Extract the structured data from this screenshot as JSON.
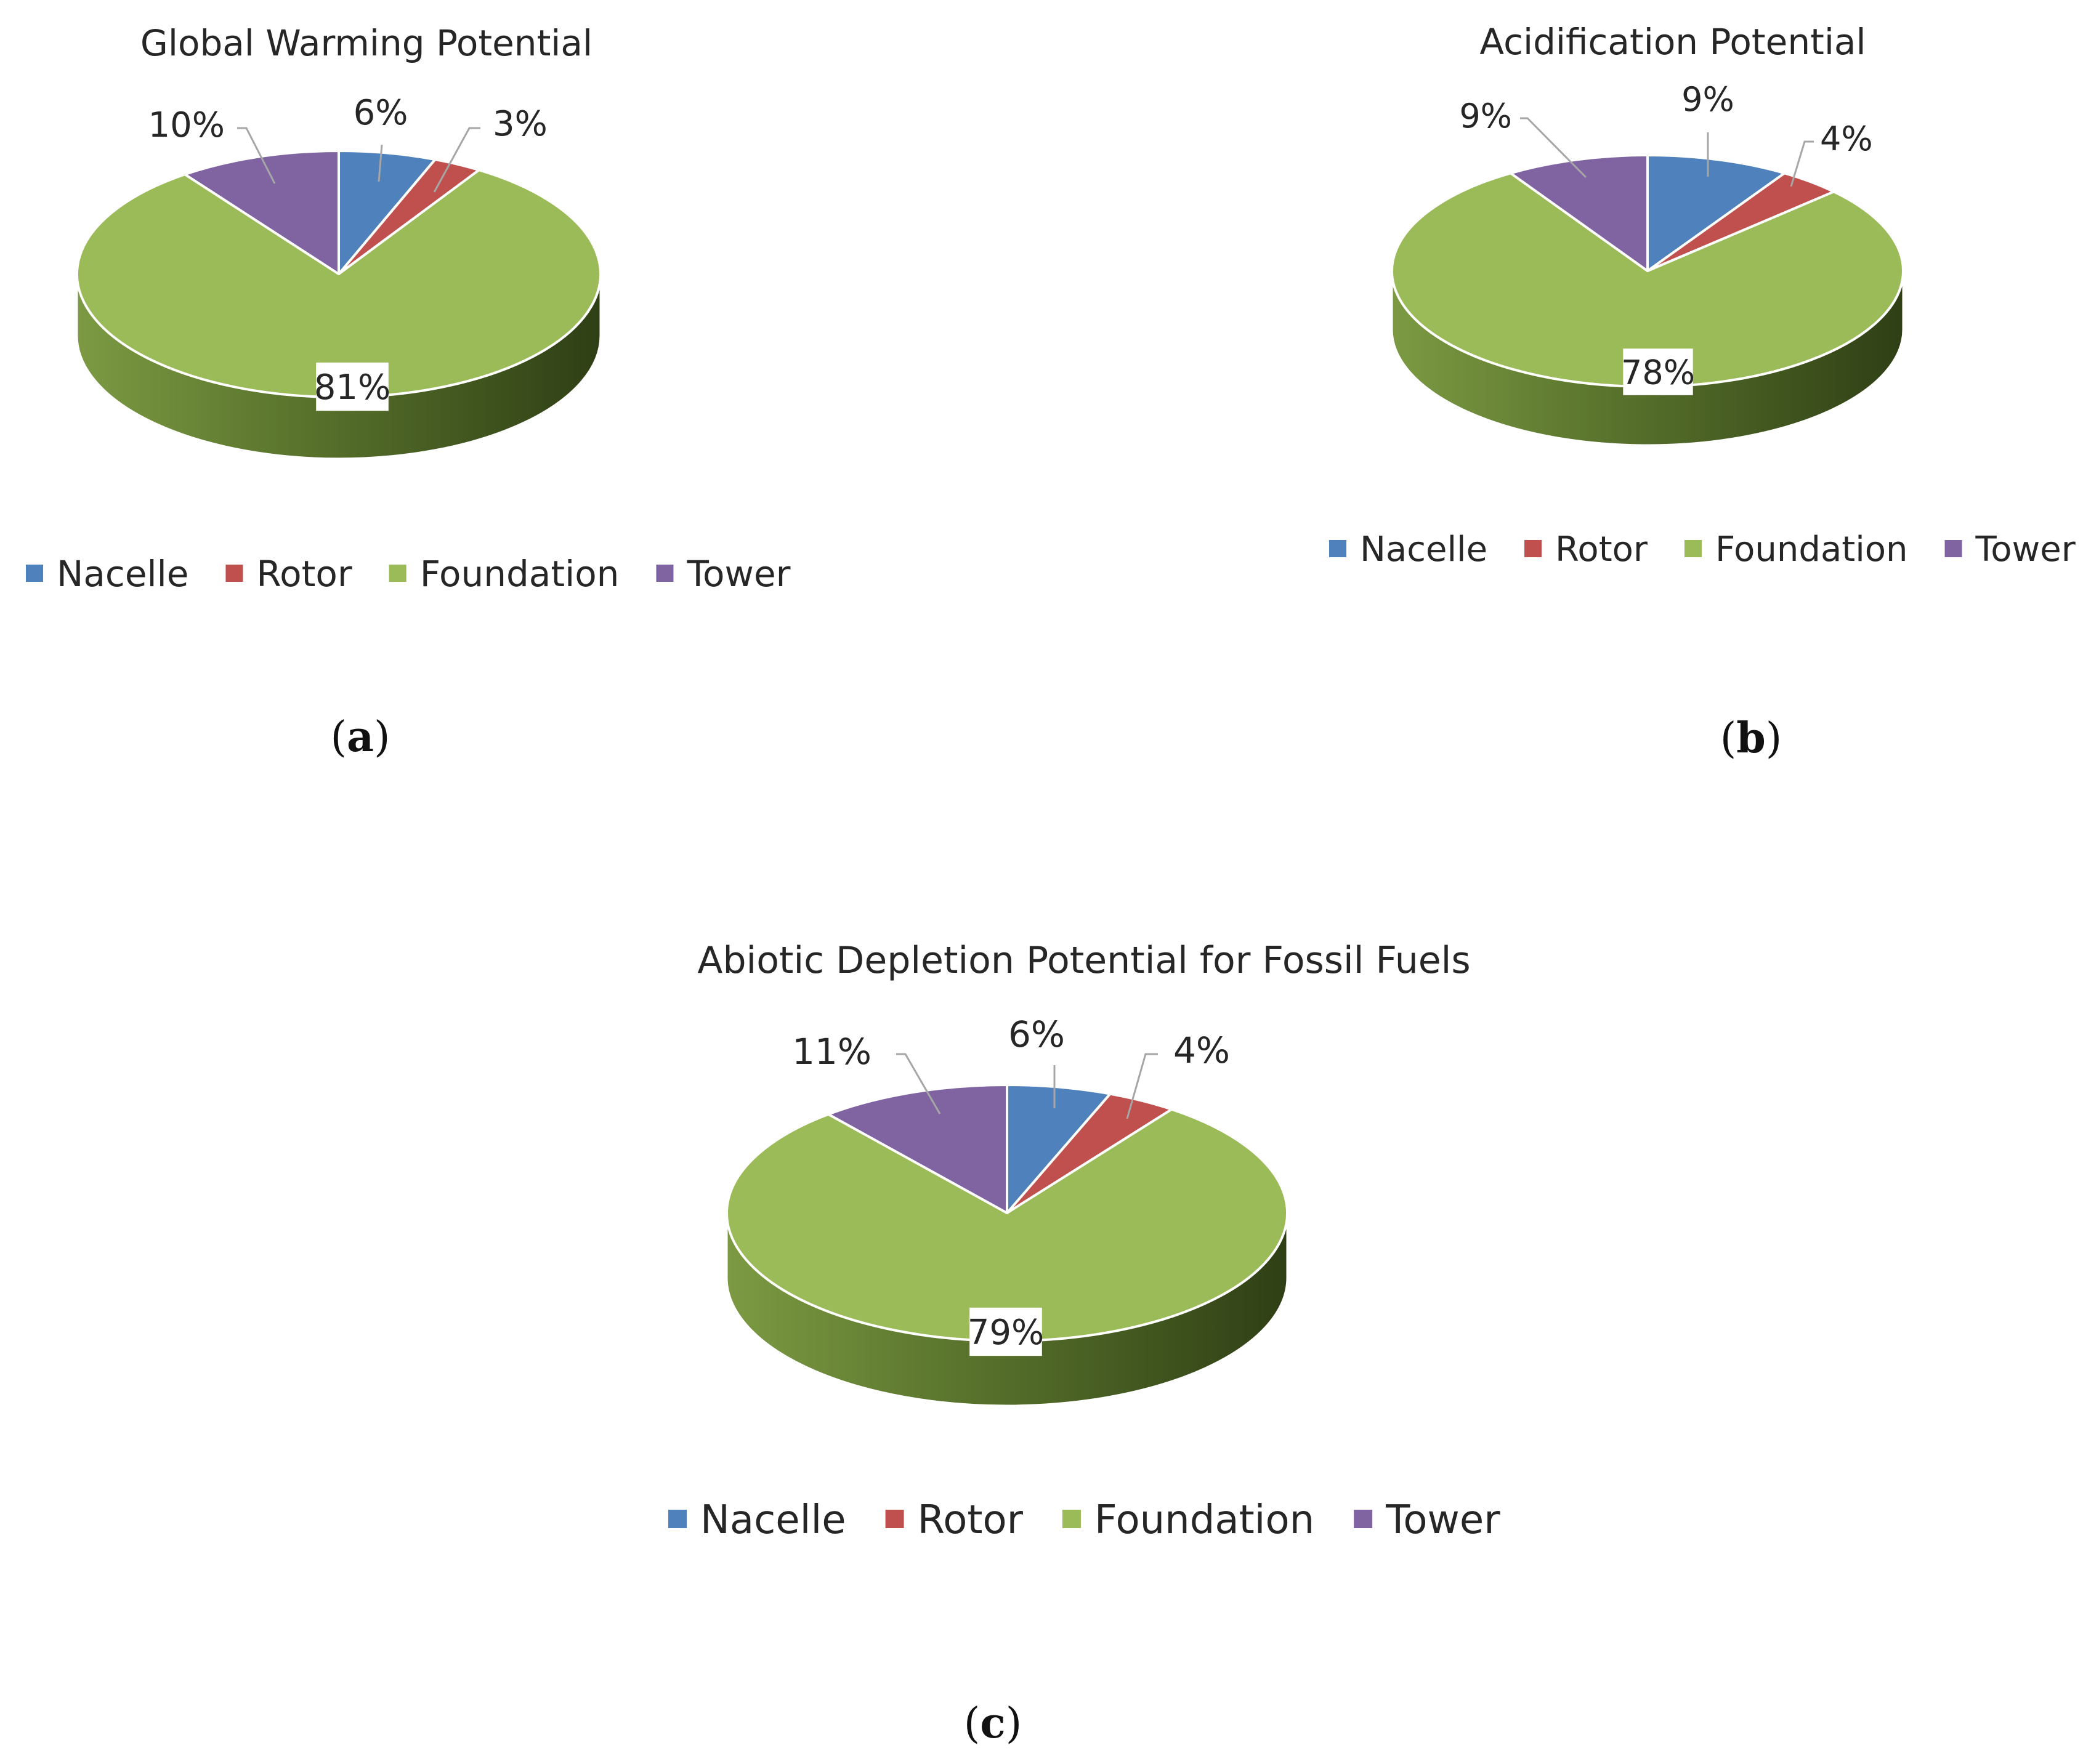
{
  "figure": {
    "colors": {
      "Nacelle": "#4F81BD",
      "Rotor": "#C0504D",
      "Foundation": "#9BBB59",
      "Tower": "#8064A2"
    },
    "panel_labels": [
      "a",
      "b",
      "c"
    ]
  },
  "chart_data": [
    {
      "type": "pie",
      "title": "Global Warming Potential",
      "panel": "a",
      "legend_position": "bottom",
      "categories": [
        "Nacelle",
        "Rotor",
        "Foundation",
        "Tower"
      ],
      "values": [
        6,
        3,
        81,
        10
      ],
      "labels": [
        "6%",
        "3%",
        "81%",
        "10%"
      ]
    },
    {
      "type": "pie",
      "title": "Acidification Potential",
      "panel": "b",
      "legend_position": "bottom",
      "categories": [
        "Nacelle",
        "Rotor",
        "Foundation",
        "Tower"
      ],
      "values": [
        9,
        4,
        78,
        9
      ],
      "labels": [
        "9%",
        "4%",
        "78%",
        "9%"
      ]
    },
    {
      "type": "pie",
      "title": "Abiotic Depletion Potential for Fossil Fuels",
      "panel": "c",
      "legend_position": "bottom",
      "categories": [
        "Nacelle",
        "Rotor",
        "Foundation",
        "Tower"
      ],
      "values": [
        6,
        4,
        79,
        11
      ],
      "labels": [
        "6%",
        "4%",
        "79%",
        "11%"
      ]
    }
  ]
}
